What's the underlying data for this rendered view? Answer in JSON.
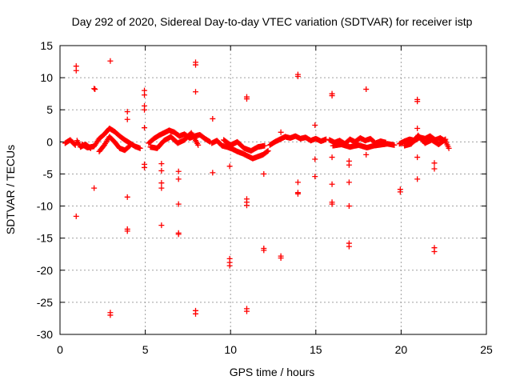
{
  "chart_data": {
    "type": "scatter",
    "title": "Day 292 of 2020, Sidereal Day-to-day VTEC variation (SDTVAR) for receiver istp",
    "xlabel": "GPS time / hours",
    "ylabel": "SDTVAR / TECUs",
    "xlim": [
      0,
      25
    ],
    "ylim": [
      -30,
      15
    ],
    "xticks": [
      0,
      5,
      10,
      15,
      20,
      25
    ],
    "yticks": [
      -30,
      -25,
      -20,
      -15,
      -10,
      -5,
      0,
      5,
      10,
      15
    ],
    "grid": true,
    "marker": "plus",
    "color": "#ff0000",
    "baseline_segments": [
      {
        "x": [
          0.3,
          0.6,
          0.9,
          1.0,
          1.2,
          1.5,
          1.8
        ],
        "y": [
          -0.2,
          0.3,
          -0.5,
          0.2,
          -0.8,
          -0.4,
          -1.0
        ]
      },
      {
        "x": [
          1.3,
          1.6,
          2.0,
          2.3,
          2.6,
          2.9,
          3.2,
          3.5,
          3.8,
          4.1,
          4.4,
          4.7
        ],
        "y": [
          -0.4,
          -0.9,
          -0.7,
          0.5,
          1.2,
          2.1,
          1.6,
          0.9,
          0.3,
          -0.2,
          -0.7,
          -1.0
        ]
      },
      {
        "x": [
          2.3,
          2.6,
          2.9,
          3.2,
          3.5,
          3.8,
          4.1
        ],
        "y": [
          -1.5,
          -0.5,
          0.8,
          0.0,
          -1.0,
          -1.3,
          -0.6
        ]
      },
      {
        "x": [
          5.2,
          5.5,
          5.8,
          6.1,
          6.4,
          6.7,
          7.0,
          7.3,
          7.6,
          7.9,
          8.2,
          8.5,
          8.8
        ],
        "y": [
          -0.2,
          0.5,
          1.0,
          1.4,
          1.8,
          1.5,
          0.9,
          1.2,
          0.6,
          0.9,
          1.1,
          0.5,
          0.0
        ]
      },
      {
        "x": [
          5.3,
          5.7,
          6.1,
          6.5,
          6.9,
          7.3,
          7.7,
          8.1
        ],
        "y": [
          -0.8,
          -1.0,
          0.2,
          0.8,
          -0.2,
          0.3,
          1.4,
          -0.5
        ]
      },
      {
        "x": [
          8.9,
          9.2,
          9.5,
          9.8,
          10.1,
          10.4,
          10.7,
          11.0,
          11.3,
          11.6,
          11.9,
          12.2
        ],
        "y": [
          -0.2,
          0.2,
          -0.6,
          -0.8,
          -1.1,
          -1.5,
          -1.8,
          -2.2,
          -2.6,
          -2.3,
          -2.0,
          -1.4
        ]
      },
      {
        "x": [
          9.6,
          10.0,
          10.4,
          10.8,
          11.2,
          11.6,
          12.0
        ],
        "y": [
          0.3,
          -0.5,
          0.0,
          -1.0,
          -1.4,
          -0.8,
          -0.6
        ]
      },
      {
        "x": [
          12.3,
          12.6,
          12.9,
          13.2,
          13.5,
          13.8,
          14.1,
          14.4,
          14.7,
          15.0,
          15.3,
          15.6
        ],
        "y": [
          -0.5,
          0.0,
          0.4,
          0.8,
          0.6,
          0.9,
          0.5,
          0.7,
          0.2,
          0.5,
          0.1,
          0.4
        ]
      },
      {
        "x": [
          15.8,
          16.1,
          16.4,
          16.7,
          17.0,
          17.3,
          17.6,
          17.9,
          18.2,
          18.5,
          18.8,
          19.1
        ],
        "y": [
          0.3,
          -0.1,
          0.2,
          -0.3,
          0.4,
          0.0,
          0.6,
          0.2,
          0.5,
          -0.2,
          0.1,
          -0.1
        ]
      },
      {
        "x": [
          16.0,
          16.5,
          17.0,
          17.5,
          18.0,
          18.4,
          19.2,
          19.6
        ],
        "y": [
          -0.6,
          -0.4,
          -0.8,
          -0.5,
          -0.9,
          -0.6,
          -0.3,
          -0.5
        ]
      },
      {
        "x": [
          19.9,
          20.2,
          20.5,
          20.8,
          21.1,
          21.4,
          21.7,
          22.0,
          22.3,
          22.6,
          22.8
        ],
        "y": [
          -0.3,
          0.1,
          0.4,
          0.2,
          0.7,
          0.5,
          0.9,
          0.3,
          0.6,
          0.1,
          -1.0
        ]
      },
      {
        "x": [
          20.2,
          20.6,
          21.0,
          21.4,
          21.8,
          22.2,
          22.6
        ],
        "y": [
          -0.6,
          -0.3,
          1.0,
          -0.2,
          0.3,
          -0.4,
          0.4
        ]
      }
    ],
    "outliers": [
      {
        "x": 0.95,
        "y": 11.8
      },
      {
        "x": 0.95,
        "y": 11.1
      },
      {
        "x": 0.95,
        "y": -11.6
      },
      {
        "x": 2.0,
        "y": 8.3
      },
      {
        "x": 2.05,
        "y": 8.2
      },
      {
        "x": 2.0,
        "y": -7.2
      },
      {
        "x": 2.95,
        "y": 12.6
      },
      {
        "x": 2.95,
        "y": -26.6
      },
      {
        "x": 2.95,
        "y": -27.0
      },
      {
        "x": 3.95,
        "y": 4.7
      },
      {
        "x": 3.95,
        "y": 3.5
      },
      {
        "x": 3.95,
        "y": -8.6
      },
      {
        "x": 3.95,
        "y": -13.6
      },
      {
        "x": 3.95,
        "y": -13.9
      },
      {
        "x": 4.95,
        "y": 8.0
      },
      {
        "x": 4.95,
        "y": 7.3
      },
      {
        "x": 4.95,
        "y": 5.6
      },
      {
        "x": 4.95,
        "y": 5.0
      },
      {
        "x": 4.95,
        "y": 2.2
      },
      {
        "x": 4.95,
        "y": -3.5
      },
      {
        "x": 4.95,
        "y": -4.0
      },
      {
        "x": 5.95,
        "y": -3.4
      },
      {
        "x": 5.95,
        "y": -4.5
      },
      {
        "x": 5.95,
        "y": -6.4
      },
      {
        "x": 5.95,
        "y": -7.2
      },
      {
        "x": 5.95,
        "y": -13.0
      },
      {
        "x": 6.95,
        "y": -4.6
      },
      {
        "x": 6.95,
        "y": -5.8
      },
      {
        "x": 6.95,
        "y": -9.7
      },
      {
        "x": 6.95,
        "y": -14.2
      },
      {
        "x": 6.95,
        "y": -14.4
      },
      {
        "x": 7.95,
        "y": 12.4
      },
      {
        "x": 7.95,
        "y": 12.0
      },
      {
        "x": 7.95,
        "y": 7.8
      },
      {
        "x": 7.95,
        "y": -26.3
      },
      {
        "x": 7.95,
        "y": -26.8
      },
      {
        "x": 8.95,
        "y": 3.6
      },
      {
        "x": 8.95,
        "y": -4.8
      },
      {
        "x": 9.95,
        "y": -3.8
      },
      {
        "x": 9.95,
        "y": -18.2
      },
      {
        "x": 9.95,
        "y": -18.8
      },
      {
        "x": 9.95,
        "y": -19.3
      },
      {
        "x": 10.95,
        "y": 7.0
      },
      {
        "x": 10.95,
        "y": 6.7
      },
      {
        "x": 10.95,
        "y": -8.9
      },
      {
        "x": 10.95,
        "y": -9.4
      },
      {
        "x": 10.95,
        "y": -9.9
      },
      {
        "x": 10.95,
        "y": -26.0
      },
      {
        "x": 10.95,
        "y": -26.4
      },
      {
        "x": 11.95,
        "y": -5.0
      },
      {
        "x": 11.95,
        "y": -16.6
      },
      {
        "x": 11.95,
        "y": -16.9
      },
      {
        "x": 12.95,
        "y": 1.5
      },
      {
        "x": 12.95,
        "y": -17.8
      },
      {
        "x": 12.95,
        "y": -18.1
      },
      {
        "x": 13.95,
        "y": 10.5
      },
      {
        "x": 13.95,
        "y": 10.2
      },
      {
        "x": 13.95,
        "y": -6.3
      },
      {
        "x": 13.95,
        "y": -7.9
      },
      {
        "x": 13.95,
        "y": -8.1
      },
      {
        "x": 14.95,
        "y": 2.6
      },
      {
        "x": 14.95,
        "y": -2.7
      },
      {
        "x": 14.95,
        "y": -5.4
      },
      {
        "x": 15.95,
        "y": 7.5
      },
      {
        "x": 15.95,
        "y": 7.2
      },
      {
        "x": 15.95,
        "y": -2.4
      },
      {
        "x": 15.95,
        "y": -6.6
      },
      {
        "x": 15.95,
        "y": -9.4
      },
      {
        "x": 15.95,
        "y": -9.7
      },
      {
        "x": 16.95,
        "y": -3.0
      },
      {
        "x": 16.95,
        "y": -3.6
      },
      {
        "x": 16.95,
        "y": -6.3
      },
      {
        "x": 16.95,
        "y": -10.0
      },
      {
        "x": 16.95,
        "y": -15.8
      },
      {
        "x": 16.95,
        "y": -16.3
      },
      {
        "x": 17.95,
        "y": 8.2
      },
      {
        "x": 17.95,
        "y": -2.0
      },
      {
        "x": 19.95,
        "y": -7.4
      },
      {
        "x": 19.95,
        "y": -7.8
      },
      {
        "x": 20.95,
        "y": 6.6
      },
      {
        "x": 20.95,
        "y": 6.3
      },
      {
        "x": 20.95,
        "y": 2.1
      },
      {
        "x": 20.95,
        "y": -2.4
      },
      {
        "x": 20.95,
        "y": -5.8
      },
      {
        "x": 21.95,
        "y": -3.3
      },
      {
        "x": 21.95,
        "y": -4.2
      },
      {
        "x": 21.95,
        "y": -16.5
      },
      {
        "x": 21.95,
        "y": -17.1
      }
    ]
  }
}
